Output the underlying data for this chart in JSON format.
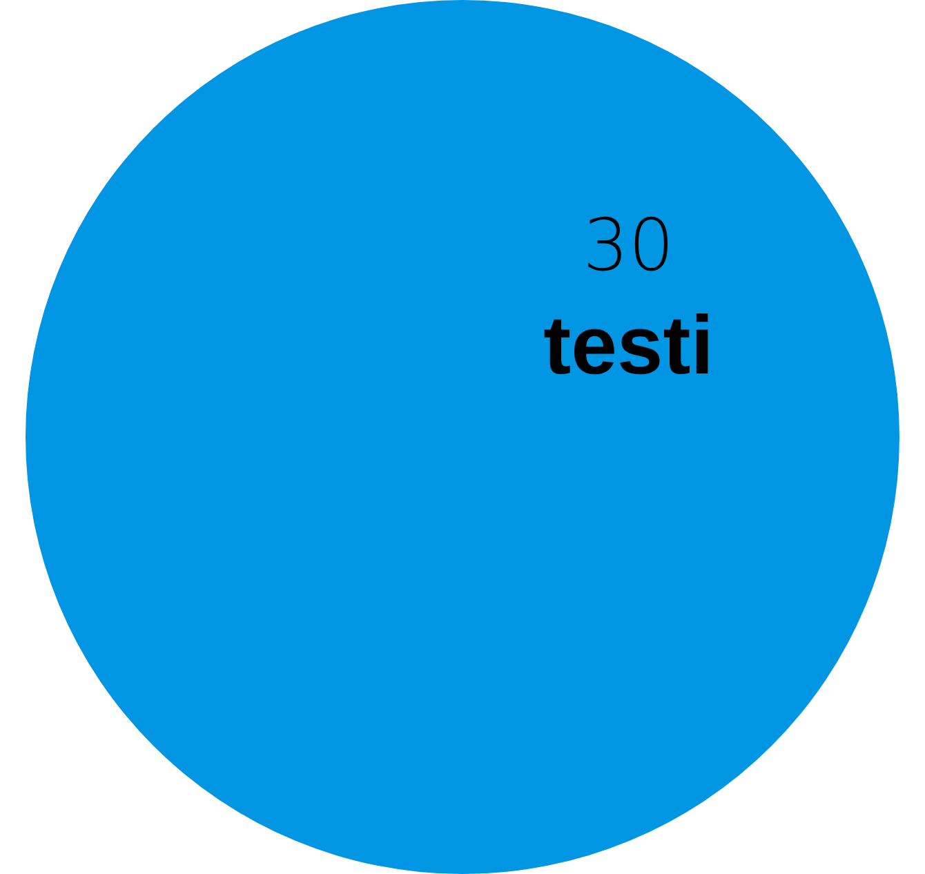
{
  "chart_data": {
    "type": "pie",
    "categories": [
      "testi"
    ],
    "values": [
      30
    ],
    "colors": [
      "#0096e4"
    ],
    "data_labels": true,
    "legend": false
  }
}
